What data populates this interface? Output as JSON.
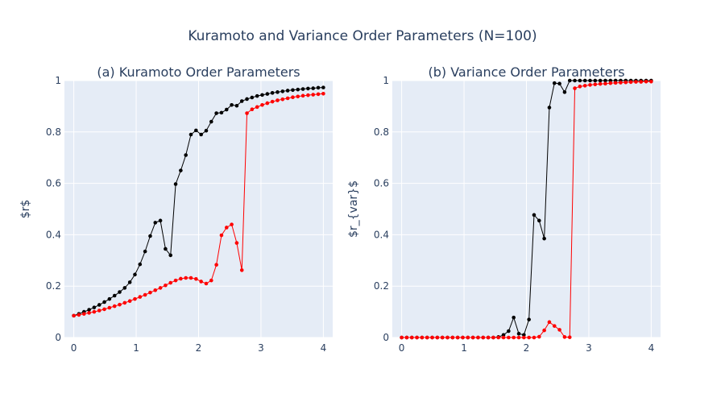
{
  "title": "Kuramoto and Variance Order Parameters (N=100)",
  "colors": {
    "plot_bg": "#e5ecf6",
    "grid": "#ffffff",
    "text": "#2a3f5f",
    "series_black": "#000000",
    "series_red": "#ff0000"
  },
  "chart_data": [
    {
      "type": "line",
      "title": "(a) Kuramoto Order Parameters",
      "xlabel": "",
      "ylabel": "$r$",
      "xlim": [
        -0.15,
        4.15
      ],
      "ylim": [
        0,
        1
      ],
      "x_ticks": [
        0,
        1,
        2,
        3,
        4
      ],
      "x_tick_labels": [
        "0",
        "1",
        "2",
        "3",
        "4"
      ],
      "y_ticks": [
        0,
        0.2,
        0.4,
        0.6,
        0.8,
        1
      ],
      "y_tick_labels": [
        "0",
        "0.2",
        "0.4",
        "0.6",
        "0.8",
        "1"
      ],
      "grid": true,
      "x": [
        0,
        0.0816,
        0.1633,
        0.2449,
        0.3265,
        0.4082,
        0.4898,
        0.5714,
        0.6531,
        0.7347,
        0.8163,
        0.898,
        0.9796,
        1.0612,
        1.1429,
        1.2245,
        1.3061,
        1.3878,
        1.4694,
        1.551,
        1.6327,
        1.7143,
        1.7959,
        1.8776,
        1.9592,
        2.0408,
        2.1224,
        2.2041,
        2.2857,
        2.3673,
        2.449,
        2.5306,
        2.6122,
        2.6939,
        2.7755,
        2.8571,
        2.9388,
        3.0204,
        3.102,
        3.1837,
        3.2653,
        3.3469,
        3.4286,
        3.5102,
        3.5918,
        3.6735,
        3.7551,
        3.8367,
        3.9184,
        4.0
      ],
      "series": [
        {
          "color": "#000000",
          "values": [
            0.085,
            0.092,
            0.1,
            0.108,
            0.117,
            0.127,
            0.138,
            0.15,
            0.163,
            0.177,
            0.193,
            0.215,
            0.245,
            0.285,
            0.335,
            0.395,
            0.447,
            0.455,
            0.345,
            0.32,
            0.597,
            0.65,
            0.71,
            0.79,
            0.806,
            0.79,
            0.805,
            0.84,
            0.873,
            0.875,
            0.887,
            0.905,
            0.902,
            0.92,
            0.928,
            0.934,
            0.94,
            0.944,
            0.948,
            0.952,
            0.955,
            0.958,
            0.961,
            0.963,
            0.965,
            0.967,
            0.969,
            0.97,
            0.972,
            0.973
          ]
        },
        {
          "color": "#ff0000",
          "values": [
            0.085,
            0.088,
            0.092,
            0.096,
            0.1,
            0.105,
            0.11,
            0.116,
            0.122,
            0.128,
            0.135,
            0.142,
            0.15,
            0.158,
            0.166,
            0.175,
            0.184,
            0.193,
            0.203,
            0.213,
            0.222,
            0.229,
            0.232,
            0.232,
            0.228,
            0.218,
            0.21,
            0.222,
            0.283,
            0.398,
            0.428,
            0.44,
            0.368,
            0.262,
            0.873,
            0.888,
            0.897,
            0.905,
            0.912,
            0.918,
            0.923,
            0.927,
            0.931,
            0.935,
            0.938,
            0.941,
            0.943,
            0.945,
            0.947,
            0.949
          ]
        }
      ]
    },
    {
      "type": "line",
      "title": "(b) Variance Order Parameters",
      "xlabel": "",
      "ylabel": "$r_{var}$",
      "xlim": [
        -0.15,
        4.15
      ],
      "ylim": [
        0,
        1
      ],
      "x_ticks": [
        0,
        1,
        2,
        3,
        4
      ],
      "x_tick_labels": [
        "0",
        "1",
        "2",
        "3",
        "4"
      ],
      "y_ticks": [
        0,
        0.2,
        0.4,
        0.6,
        0.8,
        1
      ],
      "y_tick_labels": [
        "0",
        "0.2",
        "0.4",
        "0.6",
        "0.8",
        "1"
      ],
      "grid": true,
      "x": [
        0,
        0.0816,
        0.1633,
        0.2449,
        0.3265,
        0.4082,
        0.4898,
        0.5714,
        0.6531,
        0.7347,
        0.8163,
        0.898,
        0.9796,
        1.0612,
        1.1429,
        1.2245,
        1.3061,
        1.3878,
        1.4694,
        1.551,
        1.6327,
        1.7143,
        1.7959,
        1.8776,
        1.9592,
        2.0408,
        2.1224,
        2.2041,
        2.2857,
        2.3673,
        2.449,
        2.5306,
        2.6122,
        2.6939,
        2.7755,
        2.8571,
        2.9388,
        3.0204,
        3.102,
        3.1837,
        3.2653,
        3.3469,
        3.4286,
        3.5102,
        3.5918,
        3.6735,
        3.7551,
        3.8367,
        3.9184,
        4.0
      ],
      "series": [
        {
          "color": "#000000",
          "values": [
            0,
            0,
            0,
            0,
            0,
            0,
            0,
            0,
            0,
            0,
            0,
            0,
            0,
            0,
            0,
            0,
            0,
            0,
            0,
            0.002,
            0.01,
            0.025,
            0.078,
            0.015,
            0.01,
            0.07,
            0.477,
            0.455,
            0.385,
            0.895,
            0.99,
            0.988,
            0.955,
            1,
            1,
            1,
            1,
            1,
            1,
            1,
            1,
            1,
            1,
            1,
            1,
            1,
            1,
            1,
            1,
            1
          ]
        },
        {
          "color": "#ff0000",
          "values": [
            0,
            0,
            0,
            0,
            0,
            0,
            0,
            0,
            0,
            0,
            0,
            0,
            0,
            0,
            0,
            0,
            0,
            0,
            0,
            0,
            0,
            0,
            0,
            0,
            0,
            0,
            0,
            0.003,
            0.028,
            0.06,
            0.045,
            0.03,
            0.002,
            0.001,
            0.97,
            0.977,
            0.98,
            0.983,
            0.985,
            0.987,
            0.988,
            0.99,
            0.991,
            0.992,
            0.993,
            0.994,
            0.995,
            0.995,
            0.996,
            0.996
          ]
        }
      ]
    }
  ]
}
